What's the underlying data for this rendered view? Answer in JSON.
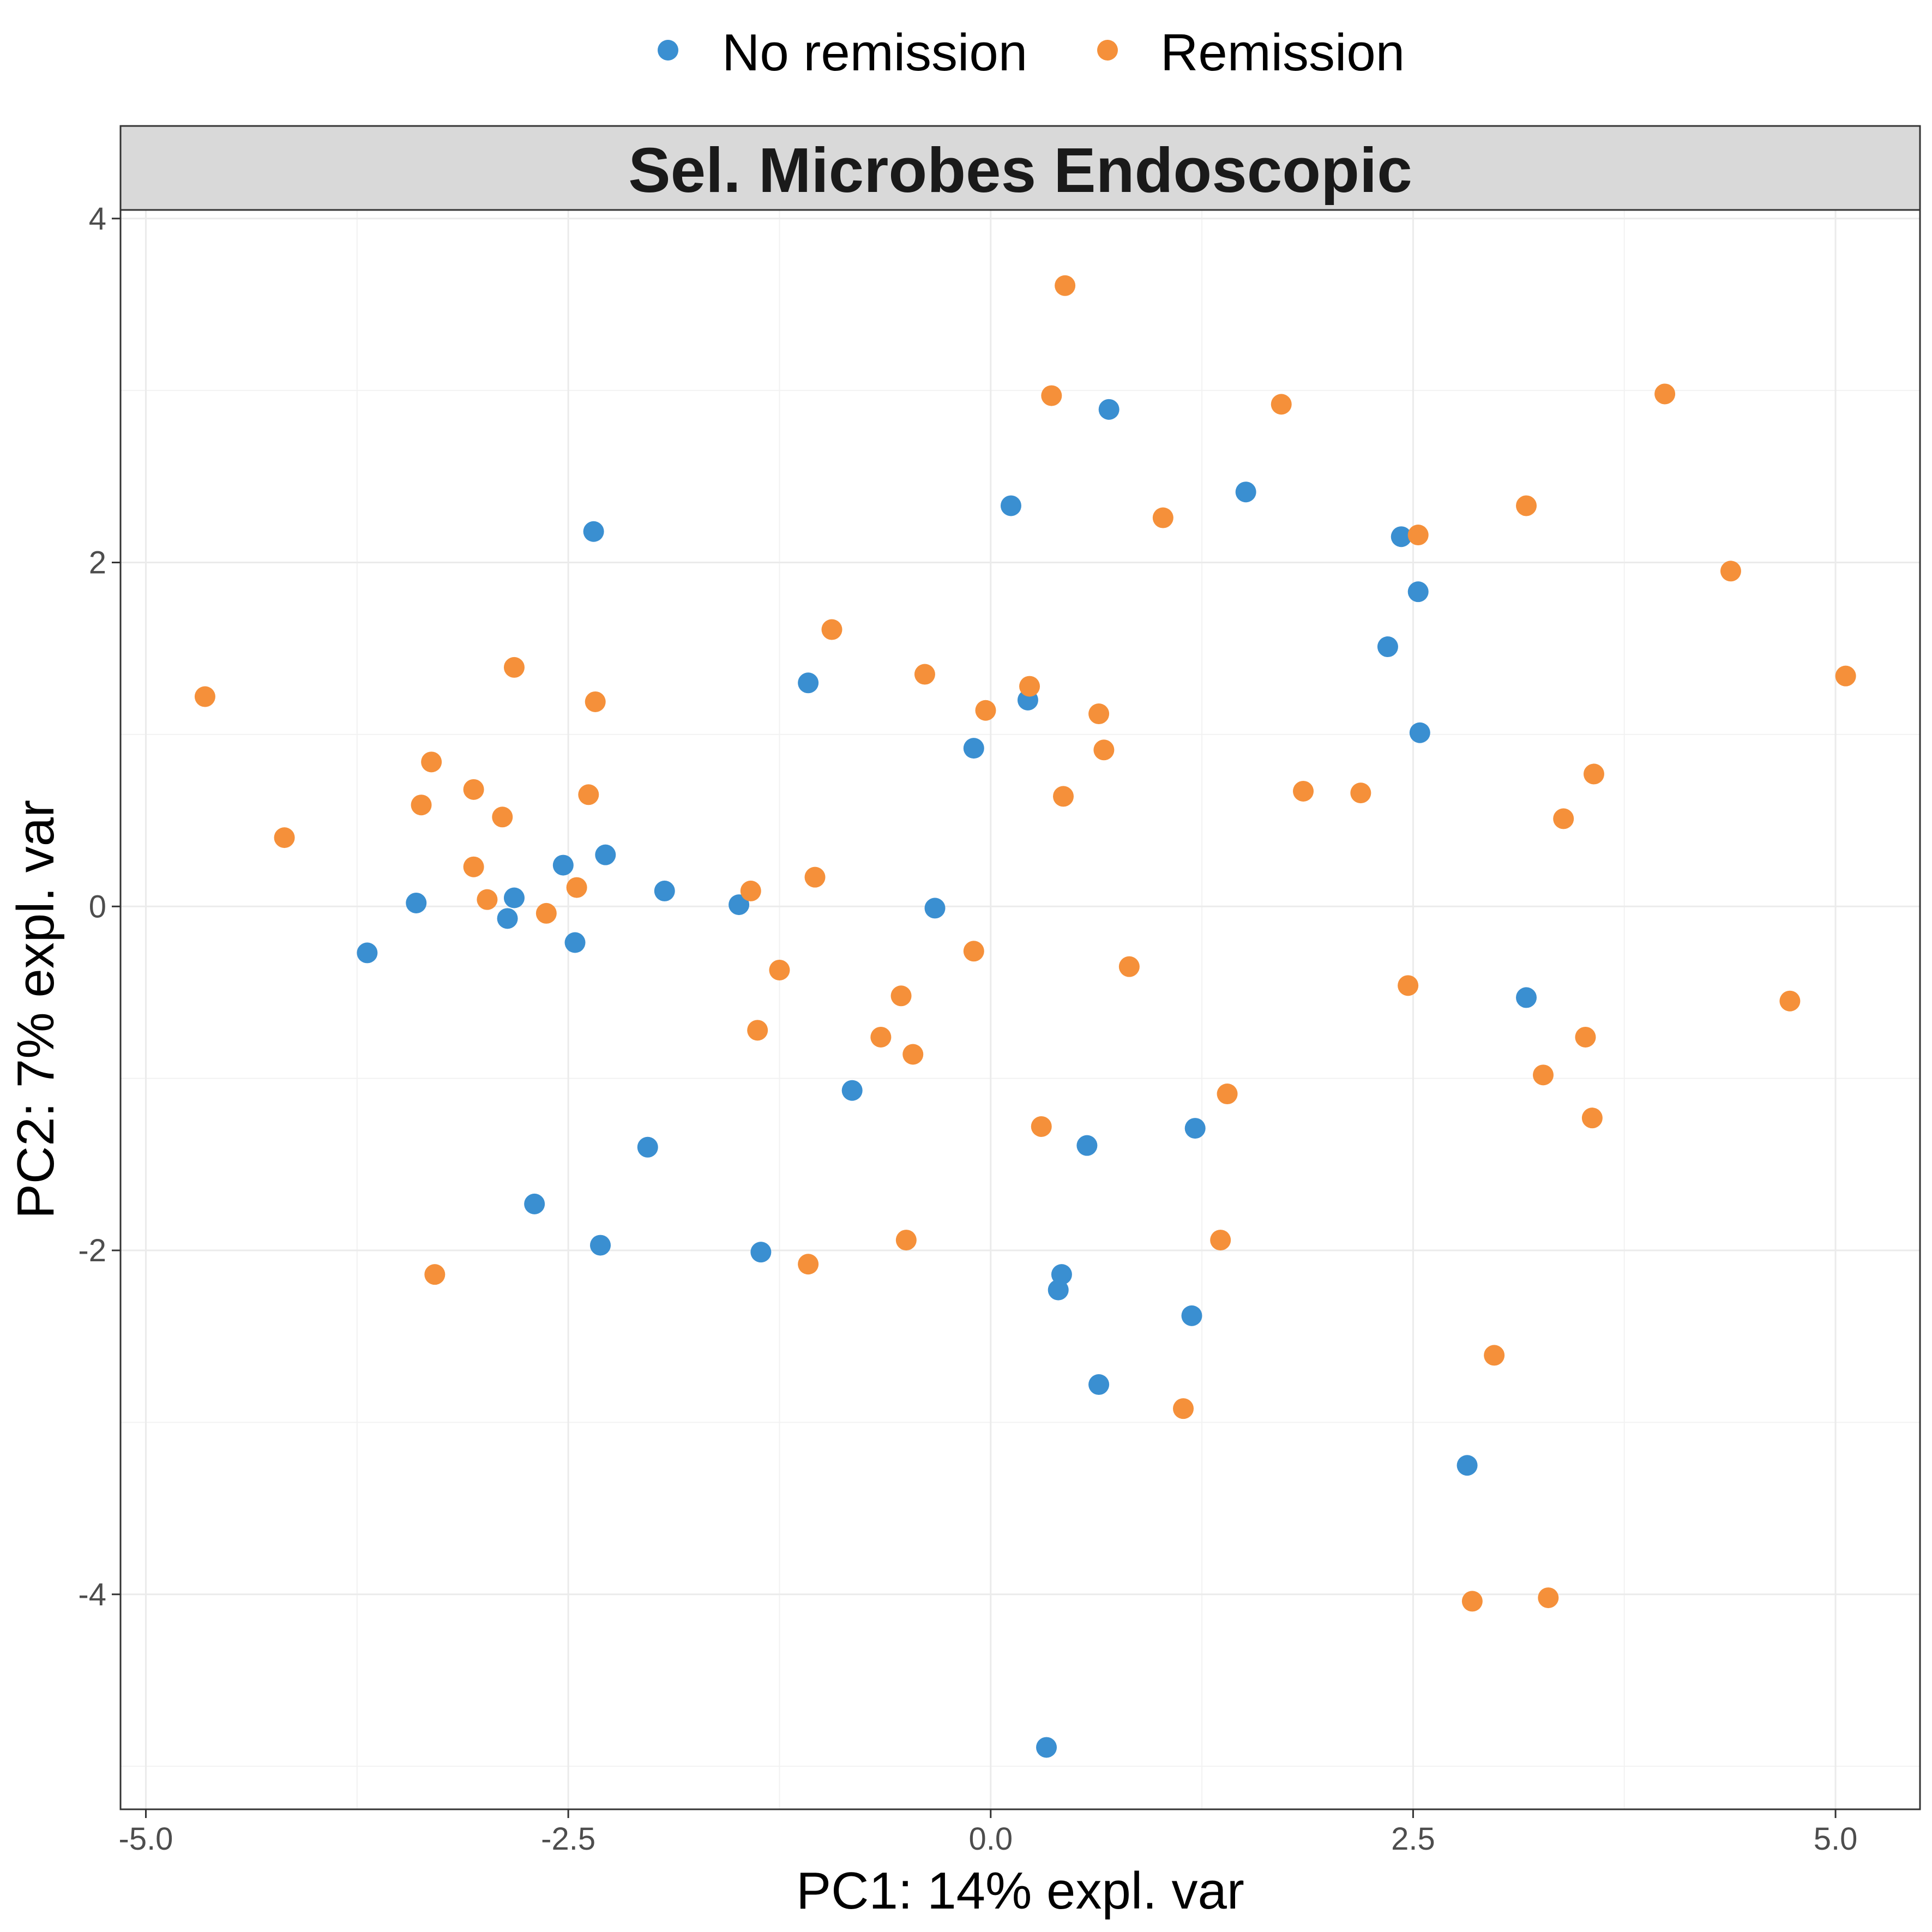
{
  "chart_data": {
    "type": "scatter",
    "title": "Sel. Microbes Endoscopic",
    "xlabel": "PC1: 14% expl. var",
    "ylabel": "PC2: 7% expl. var",
    "xlim": [
      -5.15,
      5.5
    ],
    "ylim": [
      -5.25,
      4.05
    ],
    "xticks": [
      -5.0,
      -2.5,
      0.0,
      2.5,
      5.0
    ],
    "xtick_labels": [
      "-5.0",
      "-2.5",
      "0.0",
      "2.5",
      "5.0"
    ],
    "yticks": [
      -4,
      -2,
      0,
      2,
      4
    ],
    "ytick_labels": [
      "-4",
      "-2",
      "0",
      "2",
      "4"
    ],
    "grid": true,
    "legend_position": "top",
    "series": [
      {
        "name": "No remission",
        "color": "#3a8fd1",
        "points": [
          [
            0.7,
            2.89
          ],
          [
            0.12,
            2.33
          ],
          [
            1.51,
            2.41
          ],
          [
            -2.35,
            2.18
          ],
          [
            2.43,
            2.15
          ],
          [
            2.53,
            1.83
          ],
          [
            2.35,
            1.51
          ],
          [
            2.54,
            1.01
          ],
          [
            -1.08,
            1.3
          ],
          [
            0.22,
            1.2
          ],
          [
            -0.1,
            0.92
          ],
          [
            -2.53,
            0.24
          ],
          [
            -2.28,
            0.3
          ],
          [
            -1.93,
            0.09
          ],
          [
            -1.49,
            0.01
          ],
          [
            -3.4,
            0.02
          ],
          [
            -2.82,
            0.05
          ],
          [
            -2.86,
            -0.07
          ],
          [
            -3.69,
            -0.27
          ],
          [
            -2.46,
            -0.21
          ],
          [
            -0.33,
            -0.01
          ],
          [
            3.17,
            -0.53
          ],
          [
            -0.82,
            -1.07
          ],
          [
            -2.03,
            -1.4
          ],
          [
            0.57,
            -1.39
          ],
          [
            1.21,
            -1.29
          ],
          [
            -2.7,
            -1.73
          ],
          [
            -2.31,
            -1.97
          ],
          [
            -1.36,
            -2.01
          ],
          [
            0.42,
            -2.14
          ],
          [
            0.4,
            -2.23
          ],
          [
            1.19,
            -2.38
          ],
          [
            0.64,
            -2.78
          ],
          [
            2.82,
            -3.25
          ],
          [
            0.33,
            -4.89
          ]
        ]
      },
      {
        "name": "Remission",
        "color": "#f5903a",
        "points": [
          [
            0.44,
            3.61
          ],
          [
            0.36,
            2.97
          ],
          [
            1.72,
            2.92
          ],
          [
            3.99,
            2.98
          ],
          [
            1.02,
            2.26
          ],
          [
            2.53,
            2.16
          ],
          [
            3.17,
            2.33
          ],
          [
            4.38,
            1.95
          ],
          [
            -0.94,
            1.61
          ],
          [
            -0.39,
            1.35
          ],
          [
            0.23,
            1.28
          ],
          [
            -0.03,
            1.14
          ],
          [
            0.64,
            1.12
          ],
          [
            0.67,
            0.91
          ],
          [
            5.06,
            1.34
          ],
          [
            -4.65,
            1.22
          ],
          [
            -2.82,
            1.39
          ],
          [
            -2.34,
            1.19
          ],
          [
            -3.31,
            0.84
          ],
          [
            -3.06,
            0.68
          ],
          [
            -3.37,
            0.59
          ],
          [
            -2.89,
            0.52
          ],
          [
            -2.38,
            0.65
          ],
          [
            -4.18,
            0.4
          ],
          [
            -3.06,
            0.23
          ],
          [
            -2.98,
            0.04
          ],
          [
            -2.45,
            0.11
          ],
          [
            -2.63,
            -0.04
          ],
          [
            -1.42,
            0.09
          ],
          [
            -1.04,
            0.17
          ],
          [
            0.43,
            0.64
          ],
          [
            1.85,
            0.67
          ],
          [
            2.19,
            0.66
          ],
          [
            3.57,
            0.77
          ],
          [
            3.39,
            0.51
          ],
          [
            -1.25,
            -0.37
          ],
          [
            -1.38,
            -0.72
          ],
          [
            -0.53,
            -0.52
          ],
          [
            -0.65,
            -0.76
          ],
          [
            -0.46,
            -0.86
          ],
          [
            -0.1,
            -0.26
          ],
          [
            0.82,
            -0.35
          ],
          [
            2.47,
            -0.46
          ],
          [
            3.52,
            -0.76
          ],
          [
            4.73,
            -0.55
          ],
          [
            3.27,
            -0.98
          ],
          [
            3.56,
            -1.23
          ],
          [
            1.4,
            -1.09
          ],
          [
            0.3,
            -1.28
          ],
          [
            -1.08,
            -2.08
          ],
          [
            -0.5,
            -1.94
          ],
          [
            1.36,
            -1.94
          ],
          [
            -3.29,
            -2.14
          ],
          [
            2.98,
            -2.61
          ],
          [
            1.14,
            -2.92
          ],
          [
            2.85,
            -4.04
          ],
          [
            3.3,
            -4.02
          ]
        ]
      }
    ]
  }
}
